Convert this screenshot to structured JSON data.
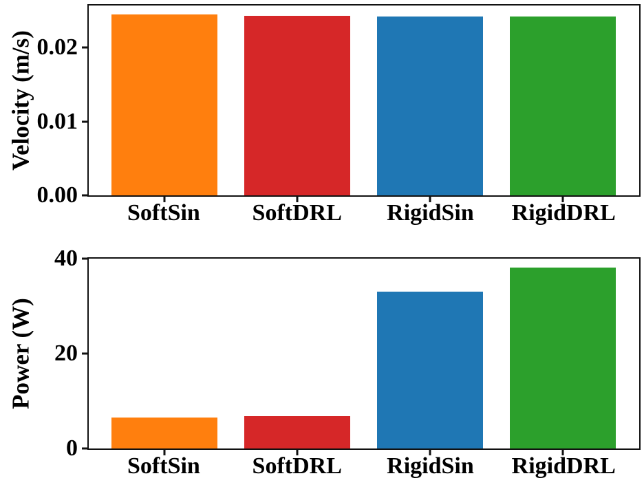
{
  "figure": {
    "background": "#ffffff",
    "text_color": "#000000",
    "frame_color": "#111111"
  },
  "chart_data": [
    {
      "type": "bar",
      "title": "",
      "categories": [
        "SoftSin",
        "SoftDRL",
        "RigidSin",
        "RigidDRL"
      ],
      "values": [
        0.0245,
        0.0243,
        0.0242,
        0.0242
      ],
      "bar_colors": [
        "#ff7f0e",
        "#d62728",
        "#1f77b4",
        "#2ca02c"
      ],
      "xlabel": "",
      "ylabel": "Velocity (m/s)",
      "ylim": [
        0,
        0.0257
      ],
      "yticks": [
        0,
        0.01,
        0.02
      ],
      "ytick_labels": [
        "0.00",
        "0.01",
        "0.02"
      ],
      "grid": false,
      "legend": "none"
    },
    {
      "type": "bar",
      "title": "",
      "categories": [
        "SoftSin",
        "SoftDRL",
        "RigidSin",
        "RigidDRL"
      ],
      "values": [
        6.5,
        6.8,
        33.0,
        38.1
      ],
      "bar_colors": [
        "#ff7f0e",
        "#d62728",
        "#1f77b4",
        "#2ca02c"
      ],
      "xlabel": "",
      "ylabel": "Power (W)",
      "ylim": [
        0,
        40
      ],
      "yticks": [
        0,
        20,
        40
      ],
      "ytick_labels": [
        "0",
        "20",
        "40"
      ],
      "grid": false,
      "legend": "none"
    }
  ]
}
